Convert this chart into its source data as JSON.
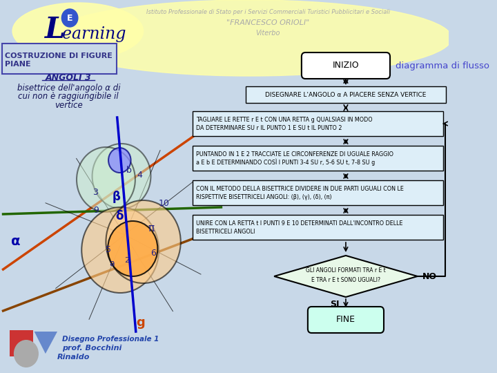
{
  "bg_color": "#c8d8e8",
  "title_box_text": "COSTRUZIONE DI FIGURE\nPIANE",
  "subtitle": "ANGOLI 3",
  "desc_line1": "bisettrice dell'angolo α di",
  "desc_line2": "cui non è raggiungibile il",
  "desc_line3": "vertice",
  "header_school": "Istituto Professionale di Stato per i Servizi Commerciali Turistici Pubblicitari e Sociali",
  "header_name": "\"FRANCESCO ORIOLI\"",
  "header_city": "Viterbo",
  "inizio_text": "INIZIO",
  "flusso_text": "diagramma di flusso",
  "fine_text": "FINE",
  "box1_text": "DISEGNARE L'ANGOLO α A PIACERE SENZA VERTICE",
  "box2_line1": "TAGLIARE LE RETTE r E t CON UNA RETTA g QUALSIASI IN MODO",
  "box2_line2": "DA DETERMINARE SU r IL PUNTO 1 E SU t IL PUNTO 2",
  "box3_line1": "PUNTANDO IN 1 E 2 TRACCIATE LE CIRCONFERENZE DI UGUALE RAGGIO",
  "box3_line2": "a E b E DETERMINANDO COSÌ I PUNTI 3-4 SU r, 5-6 SU t, 7-8 SU g",
  "box4_line1": "CON IL METODO DELLA BISETTRICE DIVIDERE IN DUE PARTI UGUALI CON LE",
  "box4_line2": "RISPETTIVE BISETTRICELI ANGOLI: (β), (γ), (δ), (π)",
  "box5_line1": "UNIRE CON LA RETTA t I PUNTI 9 E 10 DETERMINATI DALL'INCONTRO DELLE",
  "box5_line2": "BISETTRICELI ANGOLI",
  "si_text": "SI",
  "no_text": "NO",
  "diamond_line1": "GLI ANGOLI FORMATI TRA r E t",
  "diamond_line2": "E TRA r E t SONO UGUALI?",
  "footer_line1": "Disegno Professionale 1",
  "footer_line2": "prof. Bocchini",
  "footer_line3": "Rinaldo"
}
